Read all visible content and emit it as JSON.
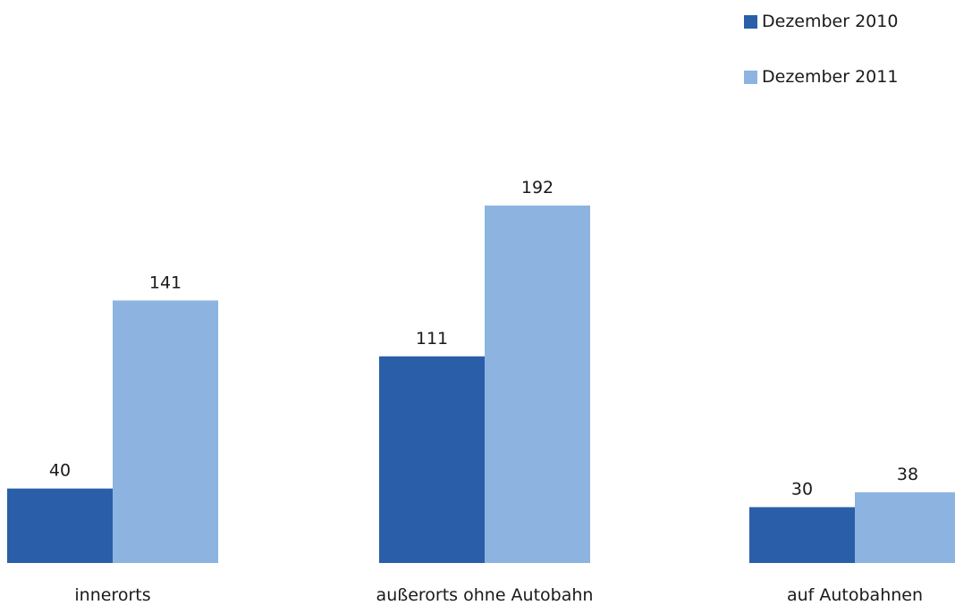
{
  "chart_data": {
    "type": "bar",
    "categories": [
      "innerorts",
      "außerorts ohne Autobahn",
      "auf Autobahnen"
    ],
    "series": [
      {
        "name": "Dezember 2010",
        "values": [
          40,
          111,
          30
        ],
        "color": "#2a5ea8"
      },
      {
        "name": "Dezember 2011",
        "values": [
          141,
          192,
          38
        ],
        "color": "#8db4e0"
      }
    ],
    "title": "",
    "xlabel": "",
    "ylabel": "",
    "ylim": [
      0,
      192
    ],
    "grid": false,
    "legend_position": "top-right",
    "data_labels": true
  }
}
